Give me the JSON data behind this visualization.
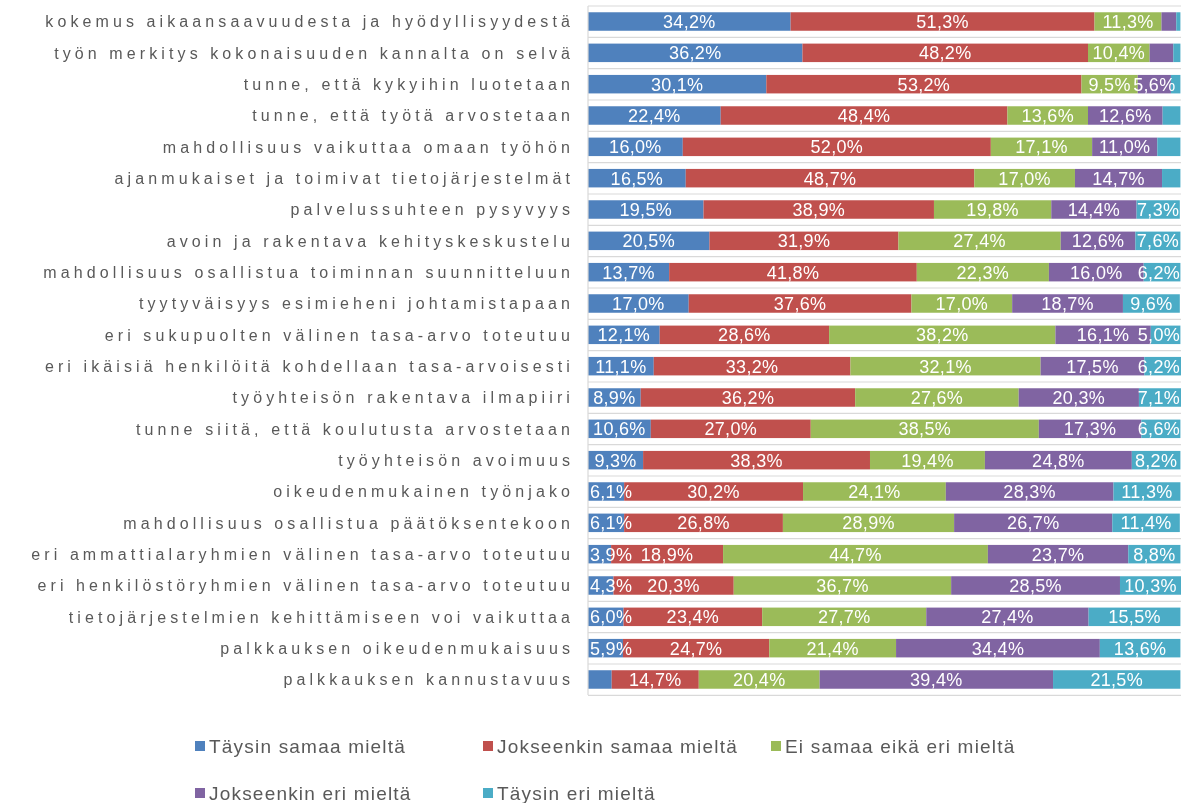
{
  "chart_data": {
    "type": "bar",
    "orientation": "horizontal",
    "stacked": true,
    "grid": "y",
    "legend": "bottom",
    "categories": [
      "kokemus aikaansaavuudesta ja hyödyllisyydestä",
      "työn merkitys kokonaisuuden kannalta on selvä",
      "tunne, että kykyihin luotetaan",
      "tunne, että työtä arvostetaan",
      "mahdollisuus vaikuttaa omaan työhön",
      "ajanmukaiset ja toimivat tietojärjestelmät",
      "palvelussuhteen pysyvyys",
      "avoin ja rakentava kehityskeskustelu",
      "mahdollisuus osallistua toiminnan suunnitteluun",
      "tyytyväisyys esimieheni johtamistapaan",
      "eri sukupuolten välinen tasa-arvo toteutuu",
      "eri ikäisiä henkilöitä kohdellaan tasa-arvoisesti",
      "työyhteisön rakentava ilmapiiri",
      "tunne siitä, että koulutusta arvostetaan",
      "työyhteisön avoimuus",
      "oikeudenmukainen työnjako",
      "mahdollisuus osallistua päätöksentekoon",
      "eri ammattialaryhmien välinen tasa-arvo toteutuu",
      "eri henkilöstöryhmien välinen tasa-arvo toteutuu",
      "tietojärjestelmien kehittämiseen voi vaikuttaa",
      "palkkauksen oikeudenmukaisuus",
      "palkkauksen kannustavuus"
    ],
    "series": [
      {
        "name": "Täysin samaa mieltä",
        "color": "#4f81bd",
        "values": [
          34.2,
          36.2,
          30.1,
          22.4,
          16.0,
          16.5,
          19.5,
          20.5,
          13.7,
          17.0,
          12.1,
          11.1,
          8.9,
          10.6,
          9.3,
          6.1,
          6.1,
          3.9,
          4.3,
          6.0,
          5.9,
          4.0
        ],
        "value_labels": [
          "34,2%",
          "36,2%",
          "30,1%",
          "22,4%",
          "16,0%",
          "16,5%",
          "19,5%",
          "20,5%",
          "13,7%",
          "17,0%",
          "12,1%",
          "11,1%",
          "8,9%",
          "10,6%",
          "9,3%",
          "6,1%",
          "6,1%",
          "3,9%",
          "4,3%",
          "6,0%",
          "5,9%",
          null
        ]
      },
      {
        "name": "Jokseenkin samaa mieltä",
        "color": "#c0504d",
        "values": [
          51.3,
          48.2,
          53.2,
          48.4,
          52.0,
          48.7,
          38.9,
          31.9,
          41.8,
          37.6,
          28.6,
          33.2,
          36.2,
          27.0,
          38.3,
          30.2,
          26.8,
          18.9,
          20.3,
          23.4,
          24.7,
          14.7
        ],
        "value_labels": [
          "51,3%",
          "48,2%",
          "53,2%",
          "48,4%",
          "52,0%",
          "48,7%",
          "38,9%",
          "31,9%",
          "41,8%",
          "37,6%",
          "28,6%",
          "33,2%",
          "36,2%",
          "27,0%",
          "38,3%",
          "30,2%",
          "26,8%",
          "18,9%",
          "20,3%",
          "23,4%",
          "24,7%",
          "14,7%"
        ]
      },
      {
        "name": "Ei samaa eikä eri mieltä",
        "color": "#9bbb59",
        "values": [
          11.3,
          10.4,
          9.5,
          13.6,
          17.1,
          17.0,
          19.8,
          27.4,
          22.3,
          17.0,
          38.2,
          32.1,
          27.6,
          38.5,
          19.4,
          24.1,
          28.9,
          44.7,
          36.7,
          27.7,
          21.4,
          20.4
        ],
        "value_labels": [
          "11,3%",
          "10,4%",
          "9,5%",
          "13,6%",
          "17,1%",
          "17,0%",
          "19,8%",
          "27,4%",
          "22,3%",
          "17,0%",
          "38,2%",
          "32,1%",
          "27,6%",
          "38,5%",
          "19,4%",
          "24,1%",
          "28,9%",
          "44,7%",
          "36,7%",
          "27,7%",
          "21,4%",
          "20,4%"
        ]
      },
      {
        "name": "Jokseenkin eri mieltä",
        "color": "#8064a2",
        "values": [
          2.5,
          4.0,
          5.6,
          12.6,
          11.0,
          14.7,
          14.4,
          12.6,
          16.0,
          18.7,
          16.1,
          17.5,
          20.3,
          17.3,
          24.8,
          28.3,
          26.7,
          23.7,
          28.5,
          27.4,
          34.4,
          39.4
        ],
        "value_labels": [
          null,
          null,
          "5,6%",
          "12,6%",
          "11,0%",
          "14,7%",
          "14,4%",
          "12,6%",
          "16,0%",
          "18,7%",
          "16,1%",
          "17,5%",
          "20,3%",
          "17,3%",
          "24,8%",
          "28,3%",
          "26,7%",
          "23,7%",
          "28,5%",
          "27,4%",
          "34,4%",
          "39,4%"
        ]
      },
      {
        "name": "Täysin eri mieltä",
        "color": "#4bacc6",
        "values": [
          0.7,
          1.2,
          1.6,
          3.0,
          3.9,
          3.1,
          7.3,
          7.6,
          6.2,
          9.6,
          5.0,
          6.2,
          7.1,
          6.6,
          8.2,
          11.3,
          11.4,
          8.8,
          10.3,
          15.5,
          13.6,
          21.5
        ],
        "value_labels": [
          null,
          null,
          null,
          null,
          null,
          null,
          "7,3%",
          "7,6%",
          "6,2%",
          "9,6%",
          "5,0%",
          "6,2%",
          "7,1%",
          "6,6%",
          "8,2%",
          "11,3%",
          "11,4%",
          "8,8%",
          "10,3%",
          "15,5%",
          "13,6%",
          "21,5%"
        ]
      }
    ]
  }
}
